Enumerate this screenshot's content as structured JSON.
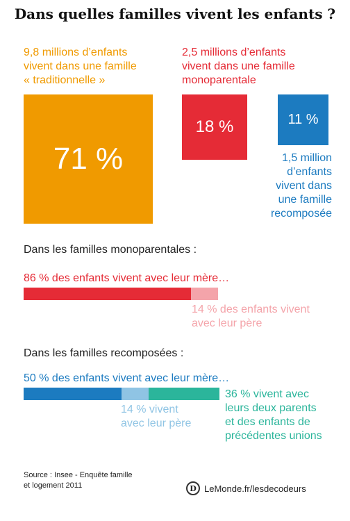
{
  "title": "Dans quelles familles vivent les enfants ?",
  "chart_data": [
    {
      "type": "square-area",
      "categories": [
        "traditionnelle",
        "monoparentale",
        "recomposée"
      ],
      "values": [
        71,
        18,
        11
      ],
      "value_labels": [
        "71 %",
        "18 %",
        "11 %"
      ],
      "annotations": [
        "9,8 millions d’enfants\nvivent dans une famille\n« traditionnelle »",
        "2,5 millions d’enfants\nvivent dans une famille\nmonoparentale",
        "1,5 million\nd’enfants\nvivent dans\nune famille\nrecomposée"
      ],
      "colors": [
        "#f09a00",
        "#e52b36",
        "#1c7bc0"
      ]
    },
    {
      "type": "stacked-bar",
      "heading": "Dans les familles monoparentales :",
      "segments": [
        {
          "value": 86,
          "label": "86 % des enfants vivent avec leur mère…",
          "color": "#e52b36"
        },
        {
          "value": 14,
          "label": "14 % des enfants vivent\navec leur père",
          "color": "#f4a4aa"
        }
      ]
    },
    {
      "type": "stacked-bar",
      "heading": "Dans les familles recomposées :",
      "segments": [
        {
          "value": 50,
          "label": "50 % des enfants vivent avec leur mère…",
          "color": "#1c7bc0"
        },
        {
          "value": 14,
          "label": "14 % vivent\navec leur père",
          "color": "#8fc4e4"
        },
        {
          "value": 36,
          "label": "36 % vivent avec\nleurs deux parents\net des enfants de\nprécédentes unions",
          "color": "#2bb59b"
        }
      ]
    }
  ],
  "footer": {
    "source": "Source : Insee - Enquête famille\net logement 2011",
    "brand_logo": "D",
    "brand": "LeMonde.fr/lesdecodeurs"
  }
}
